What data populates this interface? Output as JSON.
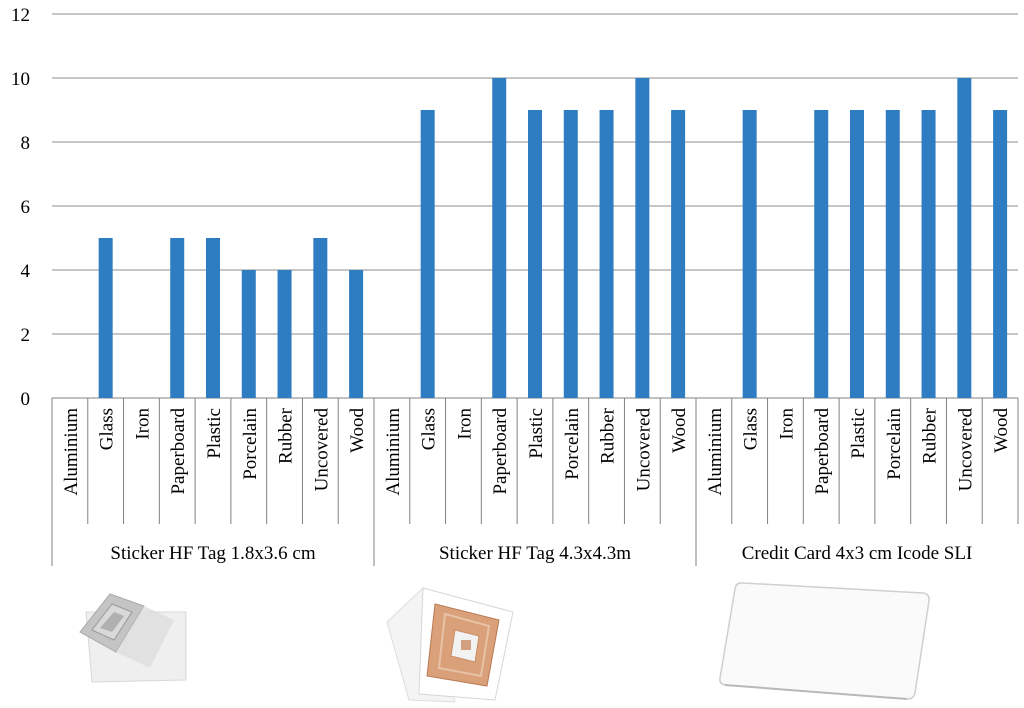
{
  "chart_data": {
    "type": "bar",
    "ylim": [
      0,
      12
    ],
    "yticks": [
      "0",
      "2",
      "4",
      "6",
      "8",
      "10",
      "12"
    ],
    "grid": true,
    "bar_color": "#2e7dc3",
    "categories": [
      "Aluminium",
      "Glass",
      "Iron",
      "Paperboard",
      "Plastic",
      "Porcelain",
      "Rubber",
      "Uncovered",
      "Wood"
    ],
    "groups": [
      {
        "label": "Sticker HF Tag 1.8x3.6 cm",
        "values": [
          0,
          5,
          0,
          5,
          5,
          4,
          4,
          5,
          4
        ]
      },
      {
        "label": "Sticker HF Tag 4.3x4.3m",
        "values": [
          0,
          9,
          0,
          10,
          9,
          9,
          9,
          10,
          9
        ]
      },
      {
        "label": "Credit Card 4x3 cm Icode SLI",
        "values": [
          0,
          9,
          0,
          9,
          9,
          9,
          9,
          10,
          9
        ]
      }
    ]
  },
  "photos": [
    "small-sticker-tag-photo",
    "square-sticker-tag-photo",
    "credit-card-tag-photo"
  ]
}
